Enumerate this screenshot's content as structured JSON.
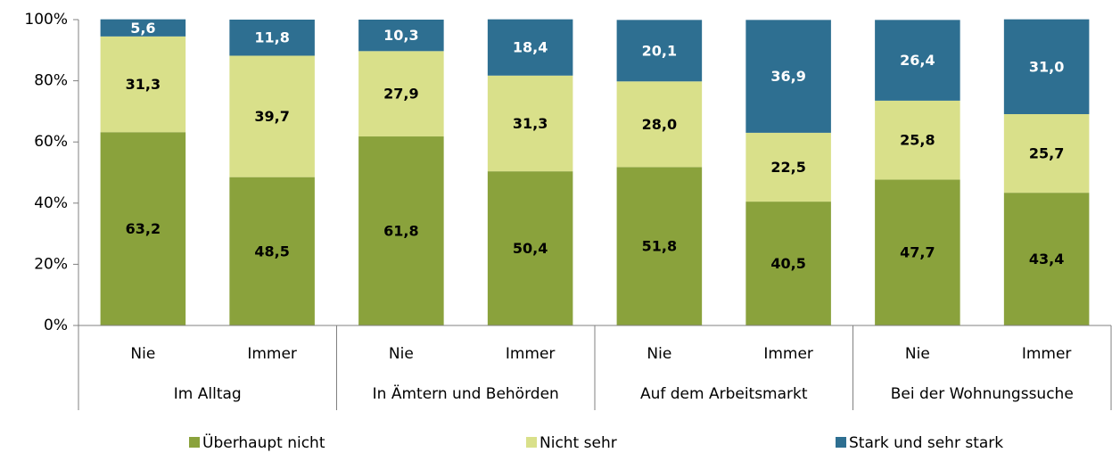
{
  "chart_data": {
    "type": "stacked_bar",
    "categories": [
      "Nie",
      "Immer",
      "Nie",
      "Immer",
      "Nie",
      "Immer",
      "Nie",
      "Immer"
    ],
    "groups": [
      "Im Alltag",
      "In Ämtern und Behörden",
      "Auf dem Arbeitsmarkt",
      "Bei der Wohnungssuche"
    ],
    "series": [
      {
        "name": "Überhaupt nicht",
        "color": "#8aa23c",
        "values": [
          63.2,
          48.5,
          61.8,
          50.4,
          51.8,
          40.5,
          47.7,
          43.4
        ],
        "value_labels": [
          "63,2",
          "48,5",
          "61,8",
          "50,4",
          "51,8",
          "40,5",
          "47,7",
          "43,4"
        ]
      },
      {
        "name": "Nicht sehr",
        "color": "#d9e08a",
        "values": [
          31.3,
          39.7,
          27.9,
          31.3,
          28.0,
          22.5,
          25.8,
          25.7
        ],
        "value_labels": [
          "31,3",
          "39,7",
          "27,9",
          "31,3",
          "28,0",
          "22,5",
          "25,8",
          "25,7"
        ]
      },
      {
        "name": "Stark und sehr stark",
        "color": "#2e6f91",
        "values": [
          5.6,
          11.8,
          10.3,
          18.4,
          20.1,
          36.9,
          26.4,
          31.0
        ],
        "value_labels": [
          "5,6",
          "11,8",
          "10,3",
          "18,4",
          "20,1",
          "36,9",
          "26,4",
          "31,0"
        ]
      }
    ],
    "ylim": [
      0,
      100
    ],
    "yticks": [
      {
        "value": 0,
        "label": "0%"
      },
      {
        "value": 20,
        "label": "20%"
      },
      {
        "value": 40,
        "label": "40%"
      },
      {
        "value": 60,
        "label": "60%"
      },
      {
        "value": 80,
        "label": "80%"
      },
      {
        "value": 100,
        "label": "100%"
      }
    ]
  }
}
